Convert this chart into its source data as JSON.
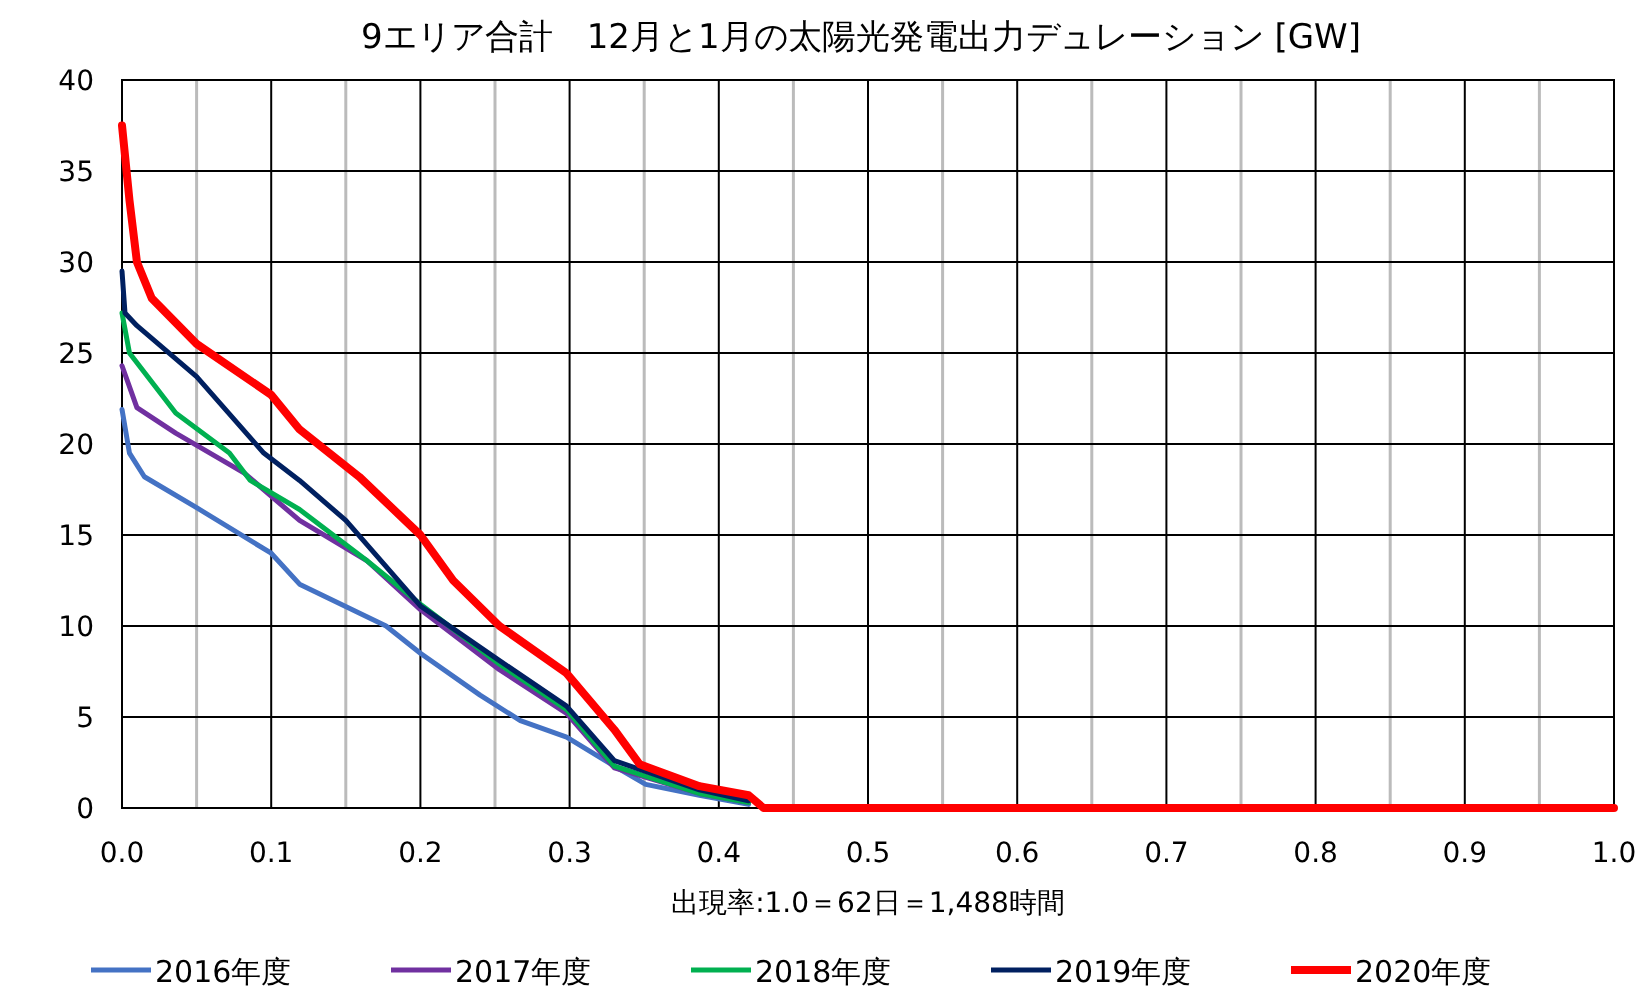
{
  "chart_data": {
    "type": "line",
    "title": "9エリア合計　12月と1月の太陽光発電出力デュレーション [GW]",
    "xlabel": "出現率:1.0＝62日＝1,488時間",
    "xlim": [
      0,
      1
    ],
    "ylim": [
      0,
      40
    ],
    "xticks": [
      {
        "value": 0,
        "label": "0.0"
      },
      {
        "value": 0.05,
        "label": null
      },
      {
        "value": 0.1,
        "label": "0.1"
      },
      {
        "value": 0.15,
        "label": null
      },
      {
        "value": 0.2,
        "label": "0.2"
      },
      {
        "value": 0.25,
        "label": null
      },
      {
        "value": 0.3,
        "label": "0.3"
      },
      {
        "value": 0.35,
        "label": null
      },
      {
        "value": 0.4,
        "label": "0.4"
      },
      {
        "value": 0.45,
        "label": null
      },
      {
        "value": 0.5,
        "label": "0.5"
      },
      {
        "value": 0.55,
        "label": null
      },
      {
        "value": 0.6,
        "label": "0.6"
      },
      {
        "value": 0.65,
        "label": null
      },
      {
        "value": 0.7,
        "label": "0.7"
      },
      {
        "value": 0.75,
        "label": null
      },
      {
        "value": 0.8,
        "label": "0.8"
      },
      {
        "value": 0.85,
        "label": null
      },
      {
        "value": 0.9,
        "label": "0.9"
      },
      {
        "value": 0.95,
        "label": null
      },
      {
        "value": 1,
        "label": "1.0"
      }
    ],
    "yticks": [
      0,
      5,
      10,
      15,
      20,
      25,
      30,
      35,
      40
    ],
    "grid": true,
    "legend": "bottom",
    "line_style": "solid",
    "series": [
      {
        "name": "2016年度",
        "color": "#4472c4",
        "x": [
          0,
          0.005,
          0.015,
          0.05,
          0.1,
          0.119,
          0.177,
          0.2,
          0.24,
          0.267,
          0.298,
          0.33,
          0.351,
          0.387,
          0.42
        ],
        "values": [
          21.9,
          19.5,
          18.2,
          16.5,
          14,
          12.3,
          10,
          8.5,
          6.2,
          4.8,
          3.9,
          2.3,
          1.3,
          0.7,
          0.2
        ]
      },
      {
        "name": "2017年度",
        "color": "#7030a0",
        "x": [
          0,
          0.01,
          0.036,
          0.082,
          0.119,
          0.164,
          0.2,
          0.253,
          0.298,
          0.33,
          0.387,
          0.42
        ],
        "values": [
          24.3,
          22,
          20.6,
          18.4,
          15.8,
          13.6,
          10.9,
          7.6,
          5.2,
          2.2,
          0.8,
          0.3
        ]
      },
      {
        "name": "2018年度",
        "color": "#00b050",
        "x": [
          0,
          0.005,
          0.036,
          0.072,
          0.086,
          0.119,
          0.164,
          0.2,
          0.253,
          0.298,
          0.33,
          0.387,
          0.42
        ],
        "values": [
          27.2,
          25,
          21.7,
          19.5,
          18,
          16.4,
          13.6,
          11.2,
          7.9,
          5.4,
          2.3,
          0.8,
          0.3
        ]
      },
      {
        "name": "2019年度",
        "color": "#002060",
        "x": [
          0,
          0.002,
          0.01,
          0.05,
          0.095,
          0.119,
          0.15,
          0.2,
          0.253,
          0.298,
          0.33,
          0.387,
          0.42
        ],
        "values": [
          29.5,
          27.2,
          26.5,
          23.7,
          19.5,
          18,
          15.8,
          11.1,
          8.1,
          5.6,
          2.6,
          1,
          0.4
        ]
      },
      {
        "name": "2020年度",
        "color": "#ff0000",
        "x": [
          0,
          0.005,
          0.01,
          0.02,
          0.05,
          0.1,
          0.119,
          0.159,
          0.2,
          0.222,
          0.253,
          0.298,
          0.33,
          0.347,
          0.387,
          0.42,
          0.43,
          1
        ],
        "values": [
          37.5,
          33.4,
          30,
          28,
          25.5,
          22.7,
          20.8,
          18.2,
          15,
          12.5,
          10,
          7.4,
          4.3,
          2.4,
          1.2,
          0.7,
          0,
          0
        ]
      }
    ]
  }
}
